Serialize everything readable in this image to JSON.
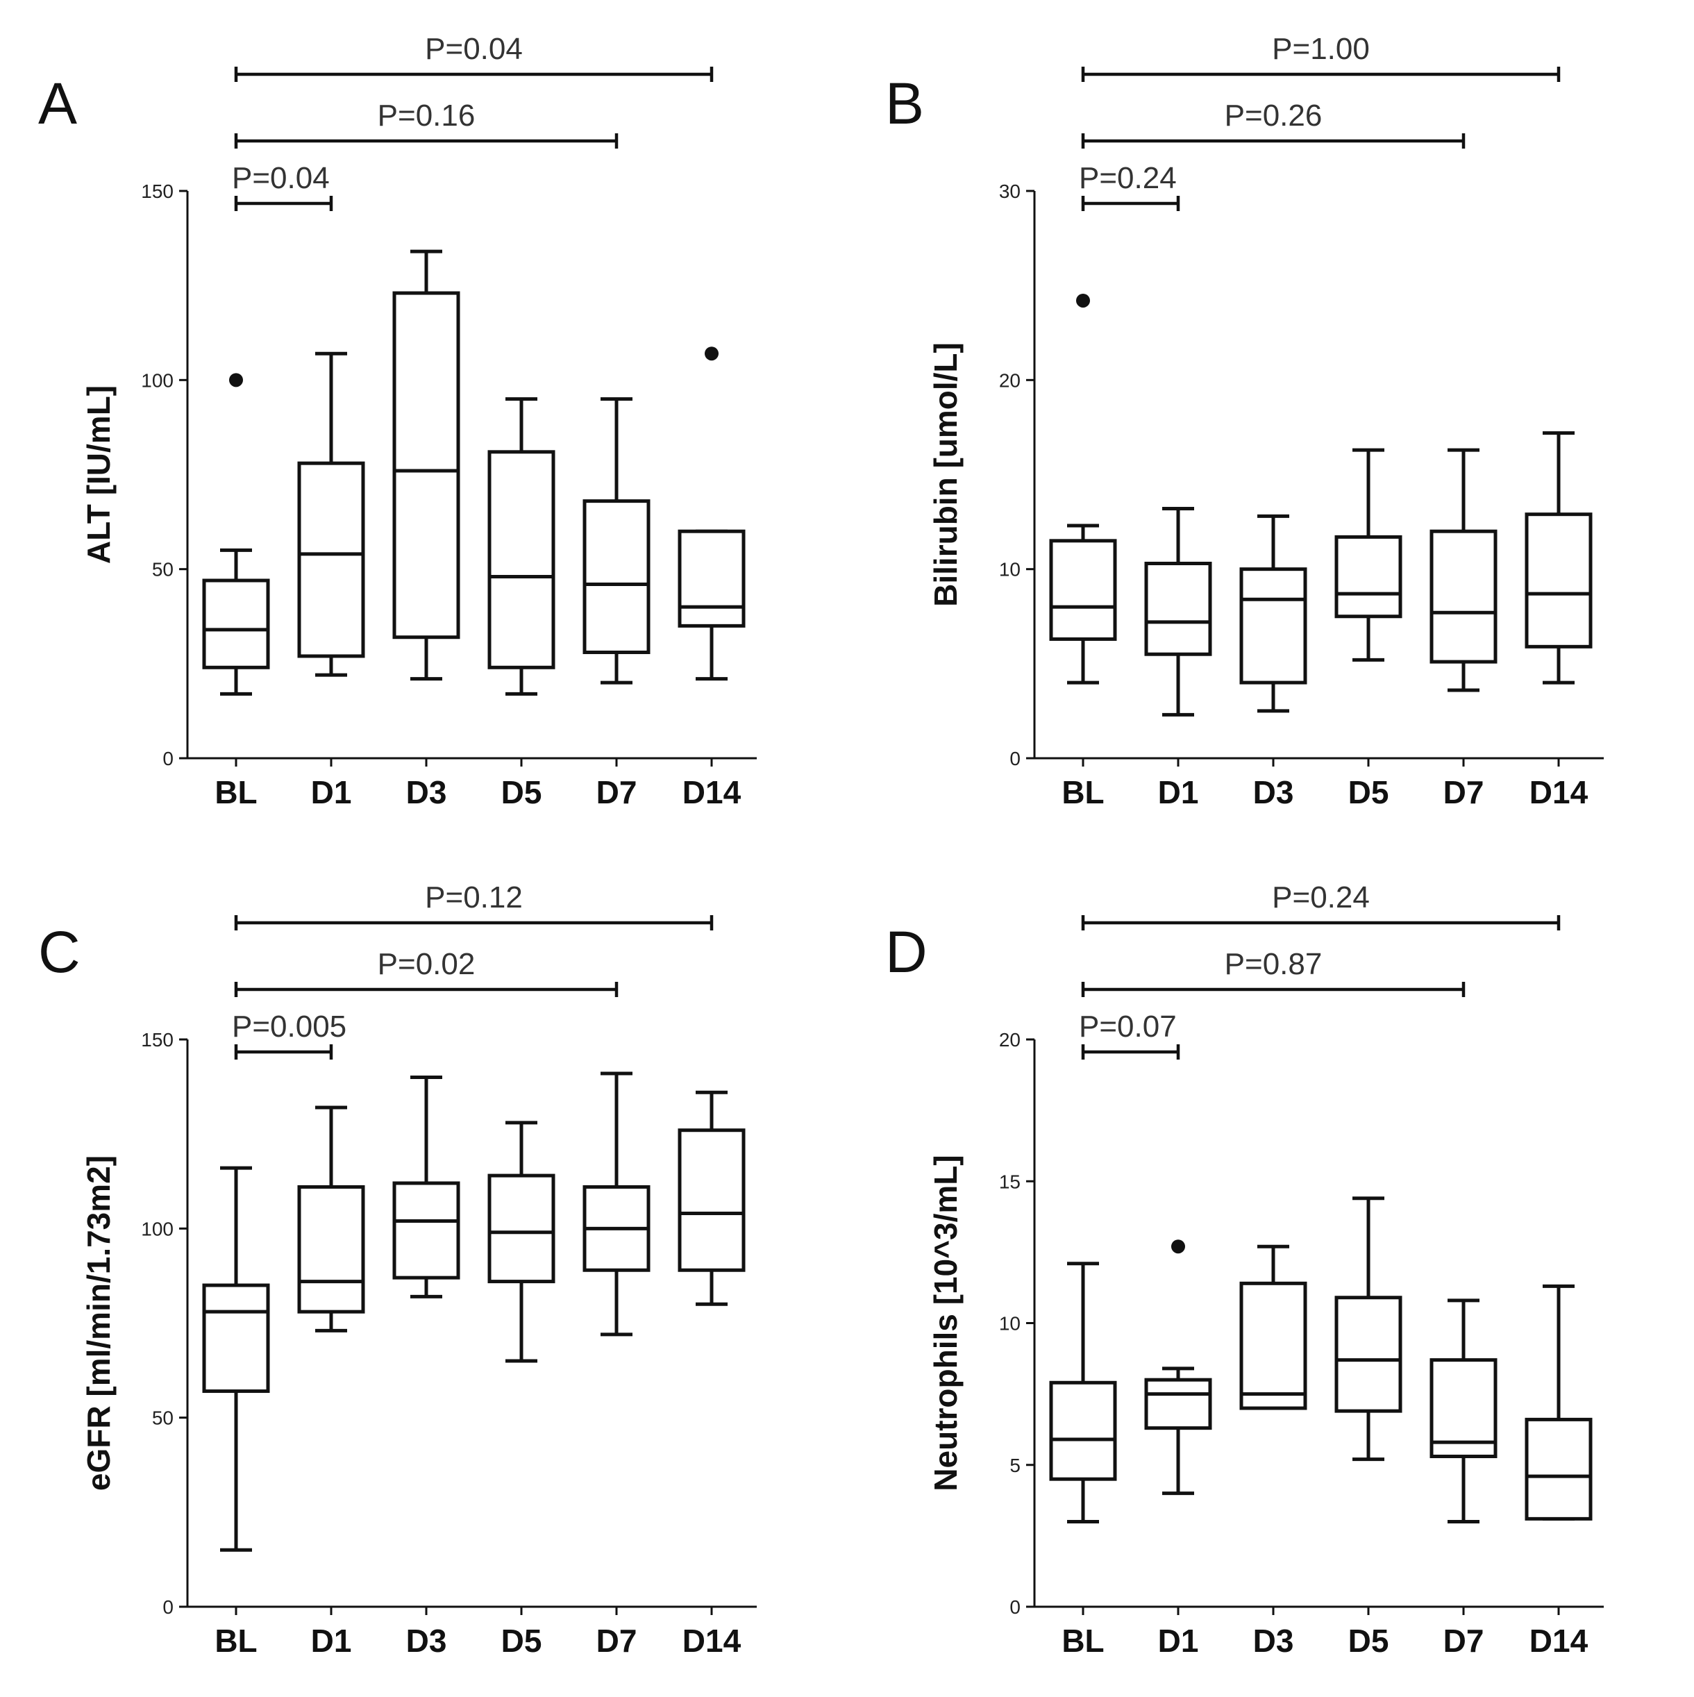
{
  "chart_data": [
    {
      "type": "box",
      "panel": "A",
      "ylabel": "ALT [IU/mL]",
      "ylim": [
        0,
        150
      ],
      "yticks": [
        0,
        50,
        100,
        150
      ],
      "categories": [
        "BL",
        "D1",
        "D3",
        "D5",
        "D7",
        "D14"
      ],
      "boxes": [
        {
          "min": 17,
          "q1": 24,
          "median": 34,
          "q3": 47,
          "max": 55,
          "outliers": [
            100
          ]
        },
        {
          "min": 22,
          "q1": 27,
          "median": 54,
          "q3": 78,
          "max": 107,
          "outliers": []
        },
        {
          "min": 21,
          "q1": 32,
          "median": 76,
          "q3": 123,
          "max": 134,
          "outliers": []
        },
        {
          "min": 17,
          "q1": 24,
          "median": 48,
          "q3": 81,
          "max": 95,
          "outliers": []
        },
        {
          "min": 20,
          "q1": 28,
          "median": 46,
          "q3": 68,
          "max": 95,
          "outliers": []
        },
        {
          "min": 21,
          "q1": 35,
          "median": 40,
          "q3": 60,
          "max": 60,
          "outliers": [
            107
          ]
        }
      ],
      "comparisons": [
        {
          "from": "BL",
          "to": "D1",
          "label": "P=0.04"
        },
        {
          "from": "BL",
          "to": "D7",
          "label": "P=0.16"
        },
        {
          "from": "BL",
          "to": "D14",
          "label": "P=0.04"
        }
      ]
    },
    {
      "type": "box",
      "panel": "B",
      "ylabel": "Bilirubin [umol/L]",
      "ylim": [
        0,
        30
      ],
      "yticks": [
        0,
        10,
        20,
        30
      ],
      "categories": [
        "BL",
        "D1",
        "D3",
        "D5",
        "D7",
        "D14"
      ],
      "boxes": [
        {
          "min": 4.0,
          "q1": 6.3,
          "median": 8.0,
          "q3": 11.5,
          "max": 12.3,
          "outliers": [
            24.2
          ]
        },
        {
          "min": 2.3,
          "q1": 5.5,
          "median": 7.2,
          "q3": 10.3,
          "max": 13.2,
          "outliers": []
        },
        {
          "min": 2.5,
          "q1": 4.0,
          "median": 8.4,
          "q3": 10.0,
          "max": 12.8,
          "outliers": []
        },
        {
          "min": 5.2,
          "q1": 7.5,
          "median": 8.7,
          "q3": 11.7,
          "max": 16.3,
          "outliers": []
        },
        {
          "min": 3.6,
          "q1": 5.1,
          "median": 7.7,
          "q3": 12.0,
          "max": 16.3,
          "outliers": []
        },
        {
          "min": 4.0,
          "q1": 5.9,
          "median": 8.7,
          "q3": 12.9,
          "max": 17.2,
          "outliers": []
        }
      ],
      "comparisons": [
        {
          "from": "BL",
          "to": "D1",
          "label": "P=0.24"
        },
        {
          "from": "BL",
          "to": "D7",
          "label": "P=0.26"
        },
        {
          "from": "BL",
          "to": "D14",
          "label": "P=1.00"
        }
      ]
    },
    {
      "type": "box",
      "panel": "C",
      "ylabel": "eGFR [ml/min/1.73m2]",
      "ylim": [
        0,
        150
      ],
      "yticks": [
        0,
        50,
        100,
        150
      ],
      "categories": [
        "BL",
        "D1",
        "D3",
        "D5",
        "D7",
        "D14"
      ],
      "boxes": [
        {
          "min": 15,
          "q1": 57,
          "median": 78,
          "q3": 85,
          "max": 116,
          "outliers": []
        },
        {
          "min": 73,
          "q1": 78,
          "median": 86,
          "q3": 111,
          "max": 132,
          "outliers": []
        },
        {
          "min": 82,
          "q1": 87,
          "median": 102,
          "q3": 112,
          "max": 140,
          "outliers": []
        },
        {
          "min": 65,
          "q1": 86,
          "median": 99,
          "q3": 114,
          "max": 128,
          "outliers": []
        },
        {
          "min": 72,
          "q1": 89,
          "median": 100,
          "q3": 111,
          "max": 141,
          "outliers": []
        },
        {
          "min": 80,
          "q1": 89,
          "median": 104,
          "q3": 126,
          "max": 136,
          "outliers": []
        }
      ],
      "comparisons": [
        {
          "from": "BL",
          "to": "D1",
          "label": "P=0.005"
        },
        {
          "from": "BL",
          "to": "D7",
          "label": "P=0.02"
        },
        {
          "from": "BL",
          "to": "D14",
          "label": "P=0.12"
        }
      ]
    },
    {
      "type": "box",
      "panel": "D",
      "ylabel": "Neutrophils [10^3/mL]",
      "ylim": [
        0,
        20
      ],
      "yticks": [
        0,
        5,
        10,
        15,
        20
      ],
      "categories": [
        "BL",
        "D1",
        "D3",
        "D5",
        "D7",
        "D14"
      ],
      "boxes": [
        {
          "min": 3.0,
          "q1": 4.5,
          "median": 5.9,
          "q3": 7.9,
          "max": 12.1,
          "outliers": []
        },
        {
          "min": 4.0,
          "q1": 6.3,
          "median": 7.5,
          "q3": 8.0,
          "max": 8.4,
          "outliers": [
            12.7
          ]
        },
        {
          "min": 7.0,
          "q1": 7.0,
          "median": 7.5,
          "q3": 11.4,
          "max": 12.7,
          "outliers": []
        },
        {
          "min": 5.2,
          "q1": 6.9,
          "median": 8.7,
          "q3": 10.9,
          "max": 14.4,
          "outliers": []
        },
        {
          "min": 3.0,
          "q1": 5.3,
          "median": 5.8,
          "q3": 8.7,
          "max": 10.8,
          "outliers": []
        },
        {
          "min": 3.1,
          "q1": 3.1,
          "median": 4.6,
          "q3": 6.6,
          "max": 11.3,
          "outliers": []
        }
      ],
      "comparisons": [
        {
          "from": "BL",
          "to": "D1",
          "label": "P=0.07"
        },
        {
          "from": "BL",
          "to": "D7",
          "label": "P=0.87"
        },
        {
          "from": "BL",
          "to": "D14",
          "label": "P=0.24"
        }
      ]
    }
  ]
}
